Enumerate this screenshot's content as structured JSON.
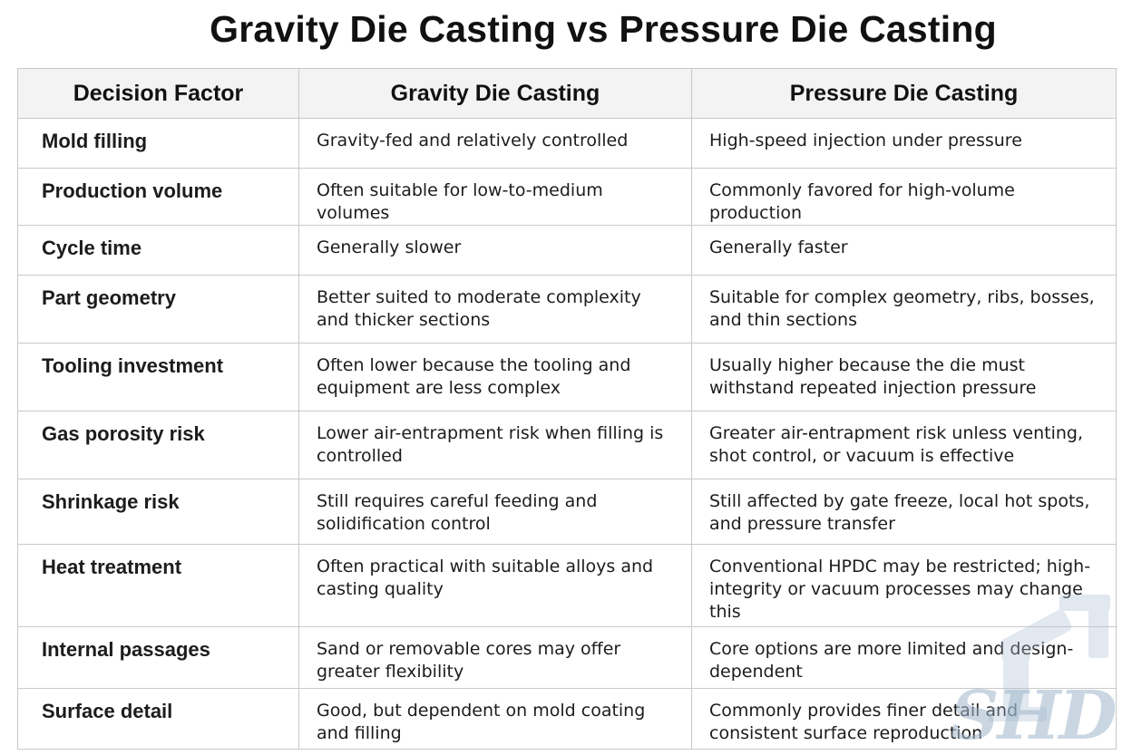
{
  "title": "Gravity Die Casting vs Pressure Die Casting",
  "table": {
    "headers": [
      "Decision Factor",
      "Gravity Die Casting",
      "Pressure Die Casting"
    ],
    "rows": [
      {
        "factor": "Mold filling",
        "gravity": "Gravity-fed and relatively controlled",
        "pressure": "High-speed injection under pressure"
      },
      {
        "factor": "Production volume",
        "gravity": "Often suitable for low-to-medium volumes",
        "pressure": "Commonly favored for high-volume production"
      },
      {
        "factor": "Cycle time",
        "gravity": "Generally slower",
        "pressure": "Generally faster"
      },
      {
        "factor": "Part geometry",
        "gravity": "Better suited to moderate complexity and thicker sections",
        "pressure": "Suitable for complex geometry, ribs, bosses, and thin sections"
      },
      {
        "factor": "Tooling investment",
        "gravity": "Often lower because the tooling and equipment are less complex",
        "pressure": "Usually higher because the die must withstand repeated injection pressure"
      },
      {
        "factor": "Gas porosity risk",
        "gravity": "Lower air-entrapment risk when filling is controlled",
        "pressure": "Greater air-entrapment risk unless venting, shot control, or vacuum is effective"
      },
      {
        "factor": "Shrinkage risk",
        "gravity": "Still requires careful feeding and solidification control",
        "pressure": "Still affected by gate freeze, local hot spots, and pressure transfer"
      },
      {
        "factor": "Heat treatment",
        "gravity": "Often practical with suitable alloys and casting quality",
        "pressure": "Conventional HPDC may be restricted; high-integrity or vacuum processes may change this"
      },
      {
        "factor": "Internal passages",
        "gravity": "Sand or removable cores may offer greater flexibility",
        "pressure": "Core options are more limited and design-dependent"
      },
      {
        "factor": "Surface detail",
        "gravity": "Good, but dependent on mold coating and filling",
        "pressure": "Commonly provides finer detail and consistent surface reproduction"
      }
    ]
  },
  "watermark": {
    "text": "SHD",
    "icon": "robot-arm-icon",
    "color": "#9fb6cc"
  }
}
